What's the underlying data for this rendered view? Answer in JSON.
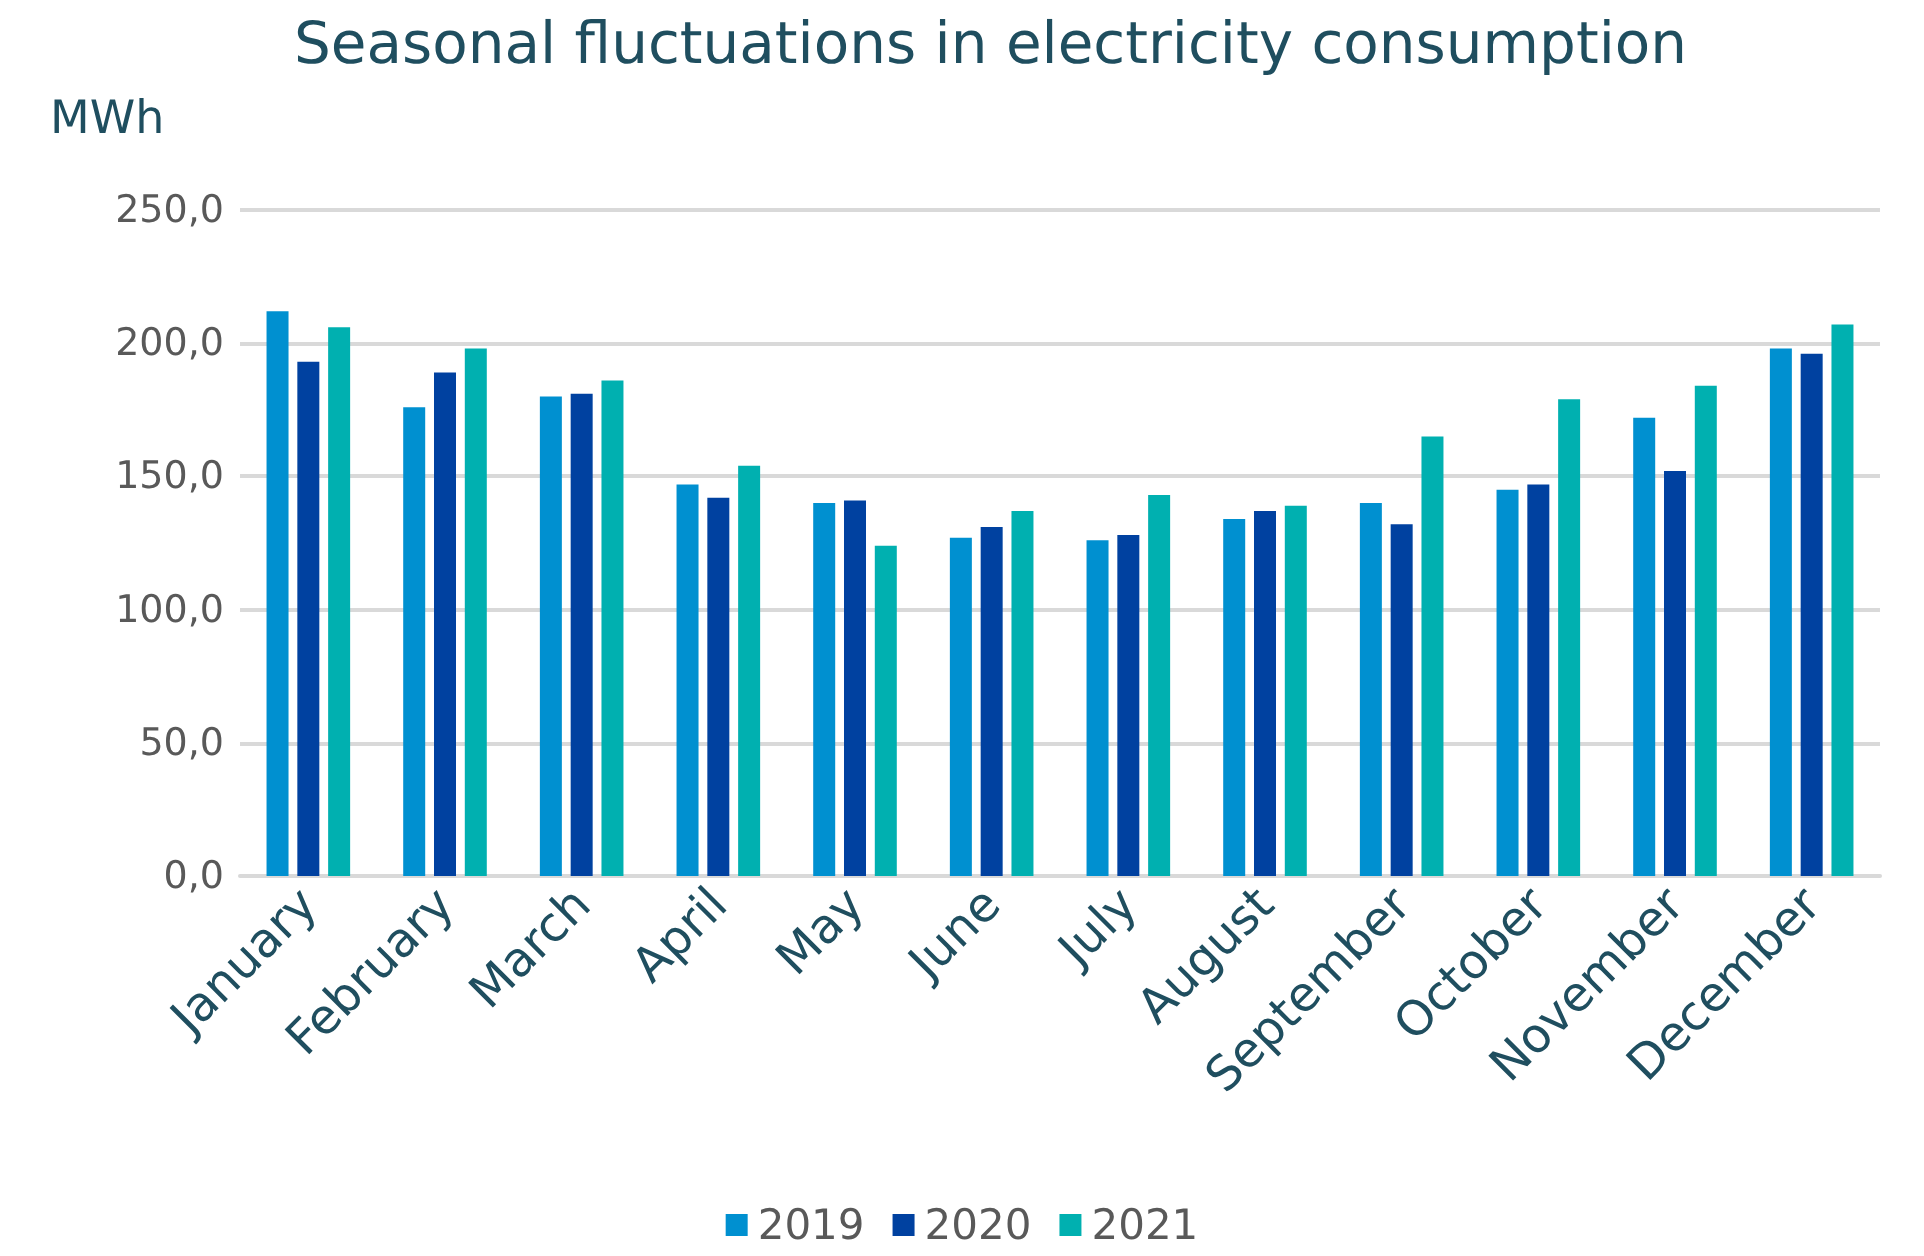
{
  "chart_data": {
    "type": "bar",
    "title": "Seasonal fluctuations in electricity consumption",
    "ylabel": "MWh",
    "categories": [
      "January",
      "February",
      "March",
      "April",
      "May",
      "June",
      "July",
      "August",
      "September",
      "October",
      "November",
      "December"
    ],
    "series": [
      {
        "name": "2019",
        "color": "#0090d0",
        "values": [
          212,
          176,
          180,
          147,
          140,
          127,
          126,
          134,
          140,
          145,
          172,
          198
        ]
      },
      {
        "name": "2020",
        "color": "#0041a0",
        "values": [
          193,
          189,
          181,
          142,
          141,
          131,
          128,
          137,
          132,
          147,
          152,
          196
        ]
      },
      {
        "name": "2021",
        "color": "#00b0b0",
        "values": [
          206,
          198,
          186,
          154,
          124,
          137,
          143,
          139,
          165,
          179,
          184,
          207
        ]
      }
    ],
    "ylim": [
      0,
      250
    ],
    "yticks": [
      {
        "value": 0,
        "label": "0,0"
      },
      {
        "value": 50,
        "label": "50,0"
      },
      {
        "value": 100,
        "label": "100,0"
      },
      {
        "value": 150,
        "label": "150,0"
      },
      {
        "value": 200,
        "label": "200,0"
      },
      {
        "value": 250,
        "label": "250,0"
      }
    ],
    "grid": "y",
    "legend": "bottom"
  }
}
